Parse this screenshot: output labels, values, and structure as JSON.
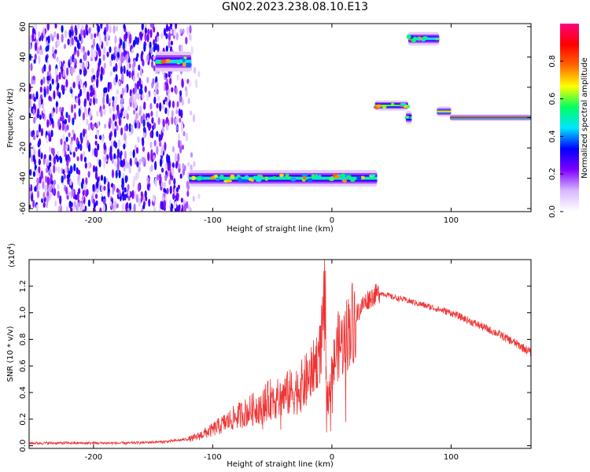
{
  "title": "GN02.2023.238.08.10.E13",
  "colors": {
    "snr_line": "#ee3333",
    "axes": "#000000"
  },
  "chart_data": [
    {
      "type": "heatmap",
      "xlabel": "Height of straight line (km)",
      "ylabel": "Frequency (Hz)",
      "xlim": [
        -254,
        167
      ],
      "ylim": [
        -62,
        62
      ],
      "xticks": [
        "-200",
        "-100",
        "0",
        "100"
      ],
      "yticks": [
        "60",
        "40",
        "20",
        "0",
        "-20",
        "-40",
        "-60"
      ],
      "colorbar": {
        "label": "Normalized spectral amplitude",
        "range": [
          0.0,
          1.0
        ],
        "ticks": [
          "0.0",
          "0.2",
          "0.4",
          "0.6",
          "0.8"
        ],
        "colormap": [
          "#ffffff",
          "#d8b8ff",
          "#8000ff",
          "#0000ff",
          "#00e5ff",
          "#00ff60",
          "#ffff00",
          "#ff6600",
          "#ff0000",
          "#ff0080"
        ]
      },
      "features": [
        {
          "kind": "noise",
          "x_start": -254,
          "x_end": -110,
          "f_low": -62,
          "f_high": 62,
          "amplitude": 0.2
        },
        {
          "kind": "band",
          "x_start": -148,
          "x_end": -118,
          "freq": 37,
          "width": 6,
          "amplitude": 0.45
        },
        {
          "kind": "band",
          "x_start": -120,
          "x_end": 38,
          "freq": -40,
          "width": 5,
          "amplitude": 0.5
        },
        {
          "kind": "band",
          "x_start": 36,
          "x_end": 64,
          "freq": 8,
          "width": 3,
          "amplitude": 0.6
        },
        {
          "kind": "band",
          "x_start": 62,
          "x_end": 67,
          "freq": 0,
          "width": 4,
          "amplitude": 0.55
        },
        {
          "kind": "band",
          "x_start": 64,
          "x_end": 90,
          "freq": 52,
          "width": 4,
          "amplitude": 0.45
        },
        {
          "kind": "band",
          "x_start": 88,
          "x_end": 100,
          "freq": 4,
          "width": 3,
          "amplitude": 0.7
        },
        {
          "kind": "band",
          "x_start": 99,
          "x_end": 167,
          "freq": 0,
          "width": 2,
          "amplitude": 0.95
        }
      ]
    },
    {
      "type": "line",
      "xlabel": "Height of straight line (km)",
      "ylabel": "SNR (10 * v/v)",
      "yscale_label": "(x10",
      "yscale_exponent": "4",
      "xlim": [
        -254,
        167
      ],
      "ylim": [
        -0.02,
        1.4
      ],
      "xticks": [
        "-200",
        "-100",
        "0",
        "100"
      ],
      "yticks": [
        "0.0",
        "0.2",
        "0.4",
        "0.6",
        "0.8",
        "1.0",
        "1.2"
      ],
      "series": [
        {
          "x": [
            -254,
            -230,
            -200,
            -170,
            -140,
            -130,
            -120,
            -115,
            -110,
            -100,
            -90,
            -80,
            -70,
            -60,
            -55,
            -50,
            -45,
            -40,
            -35,
            -30,
            -25,
            -20,
            -15,
            -10,
            -7,
            -5,
            -3,
            0,
            5,
            10,
            15,
            20,
            25,
            30,
            35,
            40,
            45,
            50,
            60,
            80,
            100,
            120,
            140,
            160,
            167
          ],
          "y": [
            0.02,
            0.02,
            0.02,
            0.02,
            0.03,
            0.04,
            0.05,
            0.06,
            0.08,
            0.12,
            0.17,
            0.22,
            0.26,
            0.3,
            0.33,
            0.36,
            0.35,
            0.38,
            0.4,
            0.42,
            0.45,
            0.5,
            0.6,
            0.7,
            0.9,
            0.5,
            0.35,
            0.55,
            0.75,
            0.78,
            0.9,
            0.98,
            1.05,
            1.1,
            1.13,
            1.15,
            1.14,
            1.12,
            1.1,
            1.05,
            1.0,
            0.92,
            0.84,
            0.74,
            0.7
          ]
        }
      ]
    }
  ]
}
